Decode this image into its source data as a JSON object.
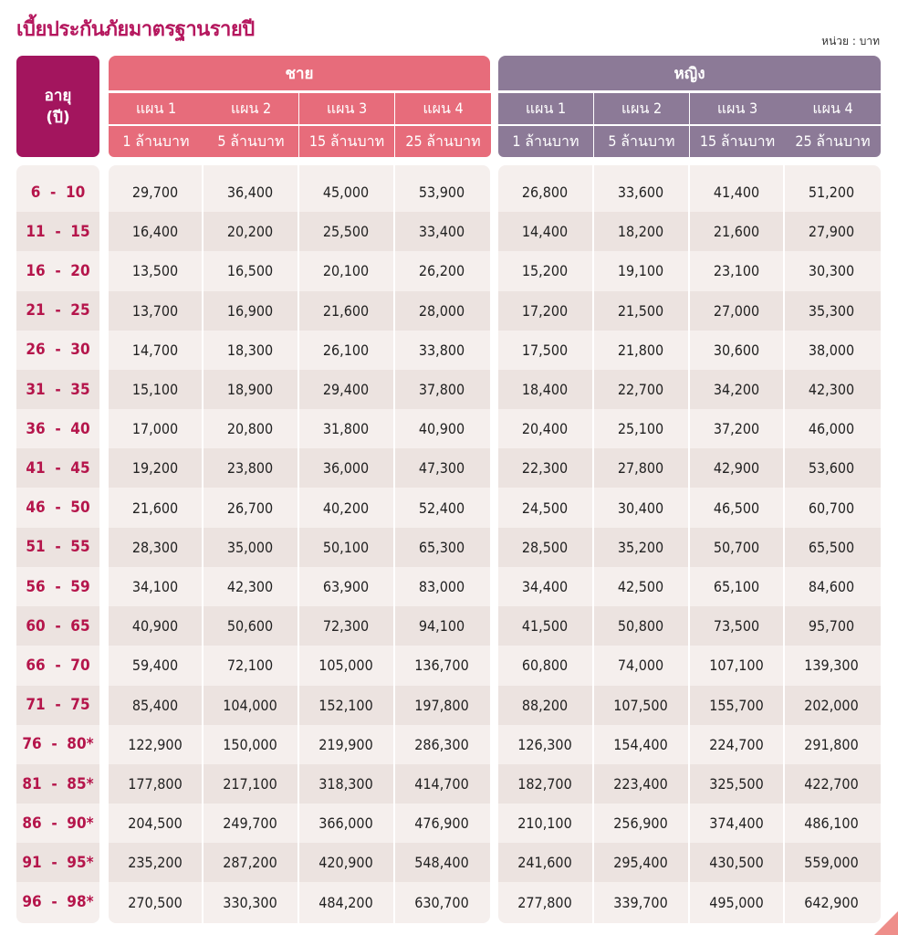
{
  "title": "เบี้ยประกันภัยมาตรฐานรายปี",
  "unit": "หน่วย : บาท",
  "age_header": {
    "line1": "อายุ",
    "line2": "(ปี)"
  },
  "groups": [
    {
      "label": "ชาย",
      "color": "#e76c7b"
    },
    {
      "label": "หญิง",
      "color": "#8c7a97"
    }
  ],
  "plans": [
    {
      "label": "แผน 1",
      "amount": "1 ล้านบาท"
    },
    {
      "label": "แผน 2",
      "amount": "5 ล้านบาท"
    },
    {
      "label": "แผน 3",
      "amount": "15 ล้านบาท"
    },
    {
      "label": "แผน 4",
      "amount": "25 ล้านบาท"
    }
  ],
  "rows": [
    {
      "age": "6  -  10",
      "values": [
        "29,700",
        "36,400",
        "45,000",
        "53,900",
        "26,800",
        "33,600",
        "41,400",
        "51,200"
      ]
    },
    {
      "age": "11  -  15",
      "values": [
        "16,400",
        "20,200",
        "25,500",
        "33,400",
        "14,400",
        "18,200",
        "21,600",
        "27,900"
      ]
    },
    {
      "age": "16  -  20",
      "values": [
        "13,500",
        "16,500",
        "20,100",
        "26,200",
        "15,200",
        "19,100",
        "23,100",
        "30,300"
      ]
    },
    {
      "age": "21  -  25",
      "values": [
        "13,700",
        "16,900",
        "21,600",
        "28,000",
        "17,200",
        "21,500",
        "27,000",
        "35,300"
      ]
    },
    {
      "age": "26  -  30",
      "values": [
        "14,700",
        "18,300",
        "26,100",
        "33,800",
        "17,500",
        "21,800",
        "30,600",
        "38,000"
      ]
    },
    {
      "age": "31  -  35",
      "values": [
        "15,100",
        "18,900",
        "29,400",
        "37,800",
        "18,400",
        "22,700",
        "34,200",
        "42,300"
      ]
    },
    {
      "age": "36  -  40",
      "values": [
        "17,000",
        "20,800",
        "31,800",
        "40,900",
        "20,400",
        "25,100",
        "37,200",
        "46,000"
      ]
    },
    {
      "age": "41  -  45",
      "values": [
        "19,200",
        "23,800",
        "36,000",
        "47,300",
        "22,300",
        "27,800",
        "42,900",
        "53,600"
      ]
    },
    {
      "age": "46  -  50",
      "values": [
        "21,600",
        "26,700",
        "40,200",
        "52,400",
        "24,500",
        "30,400",
        "46,500",
        "60,700"
      ]
    },
    {
      "age": "51  -  55",
      "values": [
        "28,300",
        "35,000",
        "50,100",
        "65,300",
        "28,500",
        "35,200",
        "50,700",
        "65,500"
      ]
    },
    {
      "age": "56  -  59",
      "values": [
        "34,100",
        "42,300",
        "63,900",
        "83,000",
        "34,400",
        "42,500",
        "65,100",
        "84,600"
      ]
    },
    {
      "age": "60  -  65",
      "values": [
        "40,900",
        "50,600",
        "72,300",
        "94,100",
        "41,500",
        "50,800",
        "73,500",
        "95,700"
      ]
    },
    {
      "age": "66  -  70",
      "values": [
        "59,400",
        "72,100",
        "105,000",
        "136,700",
        "60,800",
        "74,000",
        "107,100",
        "139,300"
      ]
    },
    {
      "age": "71  -  75",
      "values": [
        "85,400",
        "104,000",
        "152,100",
        "197,800",
        "88,200",
        "107,500",
        "155,700",
        "202,000"
      ]
    },
    {
      "age": "76  -  80*",
      "values": [
        "122,900",
        "150,000",
        "219,900",
        "286,300",
        "126,300",
        "154,400",
        "224,700",
        "291,800"
      ]
    },
    {
      "age": "81  -  85*",
      "values": [
        "177,800",
        "217,100",
        "318,300",
        "414,700",
        "182,700",
        "223,400",
        "325,500",
        "422,700"
      ]
    },
    {
      "age": "86  -  90*",
      "values": [
        "204,500",
        "249,700",
        "366,000",
        "476,900",
        "210,100",
        "256,900",
        "374,400",
        "486,100"
      ]
    },
    {
      "age": "91  -  95*",
      "values": [
        "235,200",
        "287,200",
        "420,900",
        "548,400",
        "241,600",
        "295,400",
        "430,500",
        "559,000"
      ]
    },
    {
      "age": "96  -  98*",
      "values": [
        "270,500",
        "330,300",
        "484,200",
        "630,700",
        "277,800",
        "339,700",
        "495,000",
        "642,900"
      ]
    }
  ]
}
